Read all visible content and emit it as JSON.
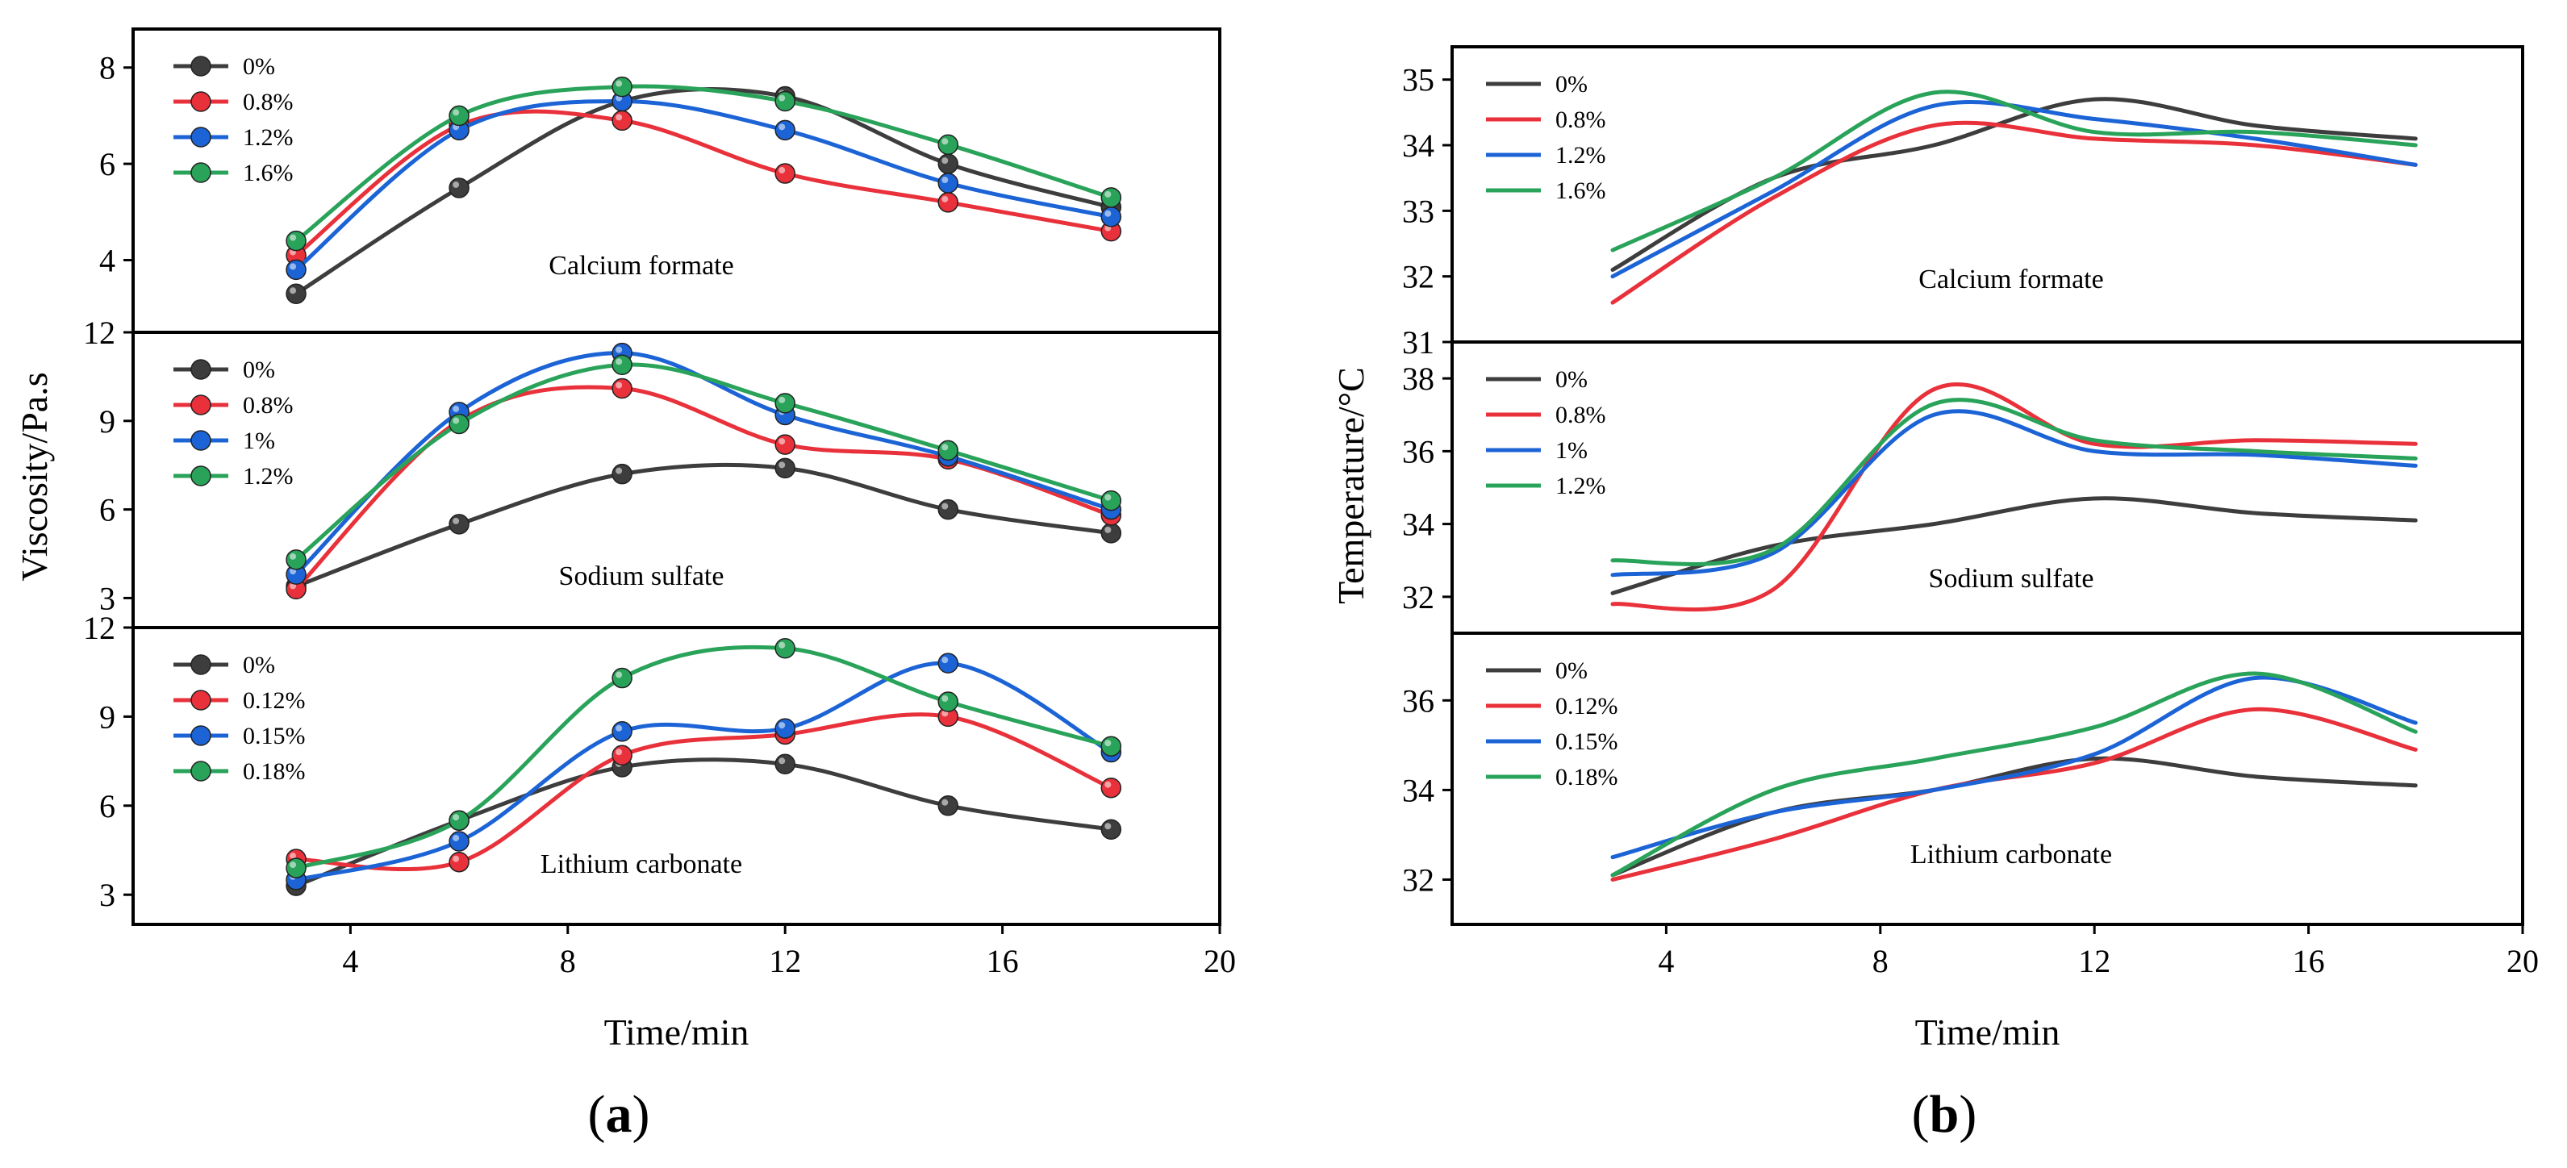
{
  "colors": {
    "gray": "#3d3d3d",
    "red": "#e8313a",
    "blue": "#1c64d6",
    "green": "#2aa35a"
  },
  "figure_labels": {
    "a": {
      "open": "(",
      "letter": "a",
      "close": ")"
    },
    "b": {
      "open": "(",
      "letter": "b",
      "close": ")"
    }
  },
  "chart_data": [
    {
      "type": "line",
      "id": "a",
      "xlabel": "Time/min",
      "ylabel": "Viscosity/Pa.s",
      "xlim": [
        0,
        20
      ],
      "xticks": [
        4,
        8,
        12,
        16,
        20
      ],
      "markers": true,
      "panels": [
        {
          "name": "Calcium formate",
          "ylim": [
            2.5,
            8.8
          ],
          "yticks": [
            4,
            6,
            8
          ],
          "x": [
            3,
            6,
            9,
            12,
            15,
            18
          ],
          "series": [
            {
              "name": "0%",
              "color": "gray",
              "values": [
                3.3,
                5.5,
                7.3,
                7.4,
                6.0,
                5.1
              ]
            },
            {
              "name": "0.8%",
              "color": "red",
              "values": [
                4.1,
                6.8,
                6.9,
                5.8,
                5.2,
                4.6
              ]
            },
            {
              "name": "1.2%",
              "color": "blue",
              "values": [
                3.8,
                6.7,
                7.3,
                6.7,
                5.6,
                4.9
              ]
            },
            {
              "name": "1.6%",
              "color": "green",
              "values": [
                4.4,
                7.0,
                7.6,
                7.3,
                6.4,
                5.3
              ]
            }
          ]
        },
        {
          "name": "Sodium sulfate",
          "ylim": [
            2.0,
            12.0
          ],
          "yticks": [
            3,
            6,
            9,
            12
          ],
          "x": [
            3,
            6,
            9,
            12,
            15,
            18
          ],
          "series": [
            {
              "name": "0%",
              "color": "gray",
              "values": [
                3.4,
                5.5,
                7.2,
                7.4,
                6.0,
                5.2
              ]
            },
            {
              "name": "0.8%",
              "color": "red",
              "values": [
                3.3,
                9.0,
                10.1,
                8.2,
                7.7,
                5.8
              ]
            },
            {
              "name": "1%",
              "color": "blue",
              "values": [
                3.8,
                9.3,
                11.3,
                9.2,
                7.8,
                6.0
              ]
            },
            {
              "name": "1.2%",
              "color": "green",
              "values": [
                4.3,
                8.9,
                10.9,
                9.6,
                8.0,
                6.3
              ]
            }
          ]
        },
        {
          "name": "Lithium carbonate",
          "ylim": [
            2.0,
            12.0
          ],
          "yticks": [
            3,
            6,
            9,
            12
          ],
          "x": [
            3,
            6,
            9,
            12,
            15,
            18
          ],
          "series": [
            {
              "name": "0%",
              "color": "gray",
              "values": [
                3.3,
                5.5,
                7.3,
                7.4,
                6.0,
                5.2
              ]
            },
            {
              "name": "0.12%",
              "color": "red",
              "values": [
                4.2,
                4.1,
                7.7,
                8.4,
                9.0,
                6.6
              ]
            },
            {
              "name": "0.15%",
              "color": "blue",
              "values": [
                3.5,
                4.8,
                8.5,
                8.6,
                10.8,
                7.8
              ]
            },
            {
              "name": "0.18%",
              "color": "green",
              "values": [
                3.9,
                5.5,
                10.3,
                11.3,
                9.5,
                8.0
              ]
            }
          ]
        }
      ]
    },
    {
      "type": "line",
      "id": "b",
      "xlabel": "Time/min",
      "ylabel": "Temperature/°C",
      "xlim": [
        0,
        20
      ],
      "xticks": [
        4,
        8,
        12,
        16,
        20
      ],
      "markers": false,
      "panels": [
        {
          "name": "Calcium formate",
          "ylim": [
            31.0,
            35.5
          ],
          "yticks": [
            31,
            32,
            33,
            34,
            35
          ],
          "x": [
            3,
            6,
            9,
            12,
            15,
            18
          ],
          "series": [
            {
              "name": "0%",
              "color": "gray",
              "values": [
                32.1,
                33.5,
                34.0,
                34.7,
                34.3,
                34.1
              ]
            },
            {
              "name": "0.8%",
              "color": "red",
              "values": [
                31.6,
                33.2,
                34.3,
                34.1,
                34.0,
                33.7
              ]
            },
            {
              "name": "1.2%",
              "color": "blue",
              "values": [
                32.0,
                33.3,
                34.6,
                34.4,
                34.1,
                33.7
              ]
            },
            {
              "name": "1.6%",
              "color": "green",
              "values": [
                32.4,
                33.5,
                34.8,
                34.2,
                34.2,
                34.0
              ]
            }
          ]
        },
        {
          "name": "Sodium sulfate",
          "ylim": [
            31.0,
            39.0
          ],
          "yticks": [
            32,
            34,
            36,
            38
          ],
          "x": [
            3,
            6,
            9,
            12,
            15,
            18
          ],
          "series": [
            {
              "name": "0%",
              "color": "gray",
              "values": [
                32.1,
                33.4,
                34.0,
                34.7,
                34.3,
                34.1
              ]
            },
            {
              "name": "0.8%",
              "color": "red",
              "values": [
                31.8,
                32.2,
                37.7,
                36.2,
                36.3,
                36.2
              ]
            },
            {
              "name": "1%",
              "color": "blue",
              "values": [
                32.6,
                33.2,
                37.0,
                36.0,
                35.9,
                35.6
              ]
            },
            {
              "name": "1.2%",
              "color": "green",
              "values": [
                33.0,
                33.3,
                37.3,
                36.3,
                36.0,
                35.8
              ]
            }
          ]
        },
        {
          "name": "Lithium carbonate",
          "ylim": [
            31.0,
            37.5
          ],
          "yticks": [
            32,
            34,
            36
          ],
          "x": [
            3,
            6,
            9,
            12,
            15,
            18
          ],
          "series": [
            {
              "name": "0%",
              "color": "gray",
              "values": [
                32.1,
                33.5,
                34.0,
                34.7,
                34.3,
                34.1
              ]
            },
            {
              "name": "0.12%",
              "color": "red",
              "values": [
                32.0,
                32.9,
                34.0,
                34.6,
                35.8,
                34.9
              ]
            },
            {
              "name": "0.15%",
              "color": "blue",
              "values": [
                32.5,
                33.5,
                34.0,
                34.8,
                36.5,
                35.5
              ]
            },
            {
              "name": "0.18%",
              "color": "green",
              "values": [
                32.1,
                34.0,
                34.7,
                35.4,
                36.6,
                35.3
              ]
            }
          ]
        }
      ]
    }
  ]
}
